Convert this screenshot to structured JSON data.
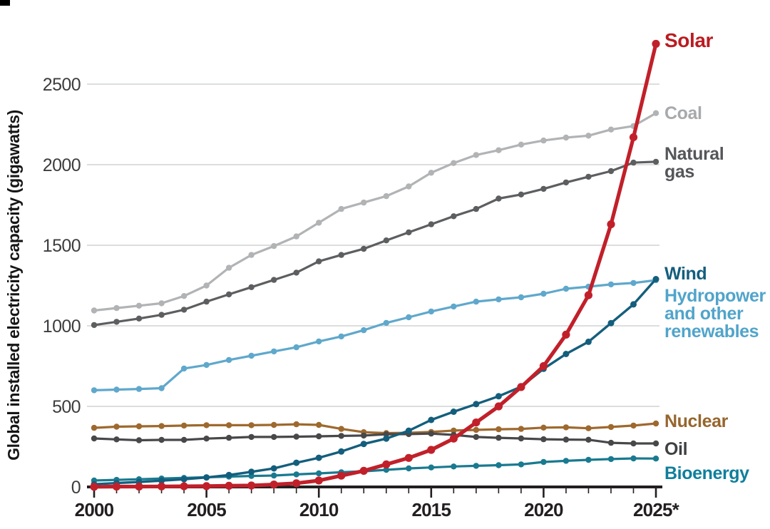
{
  "figure": {
    "title": "",
    "y_axis_title": "Global installed electricity capacity (gigawatts)"
  },
  "chart_data": {
    "type": "line",
    "title": "",
    "xlabel": "",
    "ylabel": "Global installed electricity capacity (gigawatts)",
    "x": [
      2000,
      2001,
      2002,
      2003,
      2004,
      2005,
      2006,
      2007,
      2008,
      2009,
      2010,
      2011,
      2012,
      2013,
      2014,
      2015,
      2016,
      2017,
      2018,
      2019,
      2020,
      2021,
      2022,
      2023,
      2024,
      2025
    ],
    "x_tick_labels": [
      "2000",
      "2005",
      "2010",
      "2015",
      "2020",
      "2025*"
    ],
    "x_major_ticks": [
      2000,
      2005,
      2010,
      2015,
      2020,
      2025
    ],
    "y_ticks": [
      0,
      500,
      1000,
      1500,
      2000,
      2500
    ],
    "ylim": [
      0,
      2800
    ],
    "xlim": [
      2000,
      2025
    ],
    "grid": "horizontal-only",
    "legend_position": "right-end-of-line-labels",
    "units": "gigawatts",
    "note_on_last_year": "2025 values are projections (asterisk on axis label)",
    "colors": {
      "grid": "#c8c9cb",
      "axis": "#231f20",
      "background": "#ffffff"
    },
    "series": [
      {
        "id": "coal",
        "name": "Coal",
        "color": "#b1b3b5",
        "label_color": "#a7a9ac",
        "label_lines": [
          "Coal"
        ],
        "label_y": 167,
        "label_size": 25,
        "width": 3.2,
        "dot": 4.2,
        "values": [
          1095,
          1110,
          1125,
          1140,
          1185,
          1250,
          1360,
          1440,
          1495,
          1555,
          1640,
          1725,
          1765,
          1805,
          1865,
          1950,
          2010,
          2060,
          2090,
          2125,
          2150,
          2168,
          2180,
          2218,
          2240,
          2320
        ]
      },
      {
        "id": "natural-gas",
        "name": "Natural gas",
        "color": "#5d5e60",
        "label_color": "#55565a",
        "label_lines": [
          "Natural",
          "gas"
        ],
        "label_y": 224,
        "label_size": 25,
        "width": 3.2,
        "dot": 4.2,
        "values": [
          1005,
          1025,
          1045,
          1068,
          1100,
          1150,
          1195,
          1240,
          1285,
          1330,
          1400,
          1440,
          1478,
          1530,
          1580,
          1630,
          1680,
          1725,
          1790,
          1815,
          1850,
          1890,
          1925,
          1960,
          2013,
          2018
        ]
      },
      {
        "id": "hydropower",
        "name": "Hydropower and other renewables",
        "color": "#5fa8cc",
        "label_color": "#51a4ca",
        "label_lines": [
          "Hydropower",
          "and other",
          "renewables"
        ],
        "label_y": 423,
        "label_size": 25,
        "width": 3.2,
        "dot": 4.2,
        "values": [
          600,
          604,
          608,
          613,
          735,
          757,
          788,
          814,
          841,
          867,
          903,
          934,
          973,
          1018,
          1053,
          1089,
          1120,
          1150,
          1164,
          1177,
          1199,
          1230,
          1243,
          1257,
          1266,
          1283
        ]
      },
      {
        "id": "nuclear",
        "name": "Nuclear",
        "color": "#9e692e",
        "label_color": "#96662e",
        "label_lines": [
          "Nuclear"
        ],
        "label_y": 599,
        "label_size": 25,
        "width": 3.2,
        "dot": 4.2,
        "values": [
          367,
          374,
          376,
          378,
          381,
          383,
          383,
          383,
          385,
          389,
          385,
          360,
          340,
          334,
          336,
          341,
          350,
          354,
          358,
          360,
          368,
          370,
          364,
          372,
          381,
          394
        ]
      },
      {
        "id": "oil",
        "name": "Oil",
        "color": "#48484a",
        "label_color": "#3f4042",
        "label_lines": [
          "Oil"
        ],
        "label_y": 638,
        "label_size": 25,
        "width": 3.2,
        "dot": 4.2,
        "values": [
          301,
          295,
          290,
          292,
          292,
          300,
          305,
          310,
          310,
          312,
          314,
          317,
          319,
          327,
          328,
          331,
          323,
          310,
          305,
          301,
          296,
          294,
          293,
          274,
          270,
          270
        ]
      },
      {
        "id": "bioenergy",
        "name": "Bioenergy",
        "color": "#197a90",
        "label_color": "#0f7f9c",
        "label_lines": [
          "Bioenergy"
        ],
        "label_y": 672,
        "label_size": 25,
        "width": 3.2,
        "dot": 4.2,
        "values": [
          40,
          44,
          48,
          52,
          56,
          60,
          64,
          68,
          71,
          78,
          84,
          91,
          97,
          106,
          115,
          121,
          127,
          131,
          135,
          140,
          155,
          162,
          168,
          173,
          177,
          176
        ]
      },
      {
        "id": "wind",
        "name": "Wind",
        "color": "#145e7d",
        "label_color": "#145e7d",
        "label_lines": [
          "Wind"
        ],
        "label_y": 392,
        "label_size": 25,
        "width": 3.4,
        "dot": 4.5,
        "values": [
          17,
          24,
          31,
          39,
          48,
          59,
          74,
          94,
          115,
          150,
          181,
          220,
          267,
          300,
          349,
          416,
          467,
          514,
          563,
          622,
          733,
          825,
          901,
          1017,
          1133,
          1290
        ]
      },
      {
        "id": "solar",
        "name": "Solar",
        "color": "#c1202a",
        "label_color": "#bb1b22",
        "label_lines": [
          "Solar"
        ],
        "label_y": 66,
        "label_size": 28,
        "width": 5.2,
        "dot": 5.6,
        "values": [
          1,
          2,
          2,
          3,
          4,
          5,
          7,
          9,
          15,
          23,
          40,
          70,
          100,
          140,
          180,
          230,
          300,
          400,
          500,
          620,
          750,
          945,
          1190,
          1630,
          2170,
          2750
        ]
      }
    ]
  }
}
